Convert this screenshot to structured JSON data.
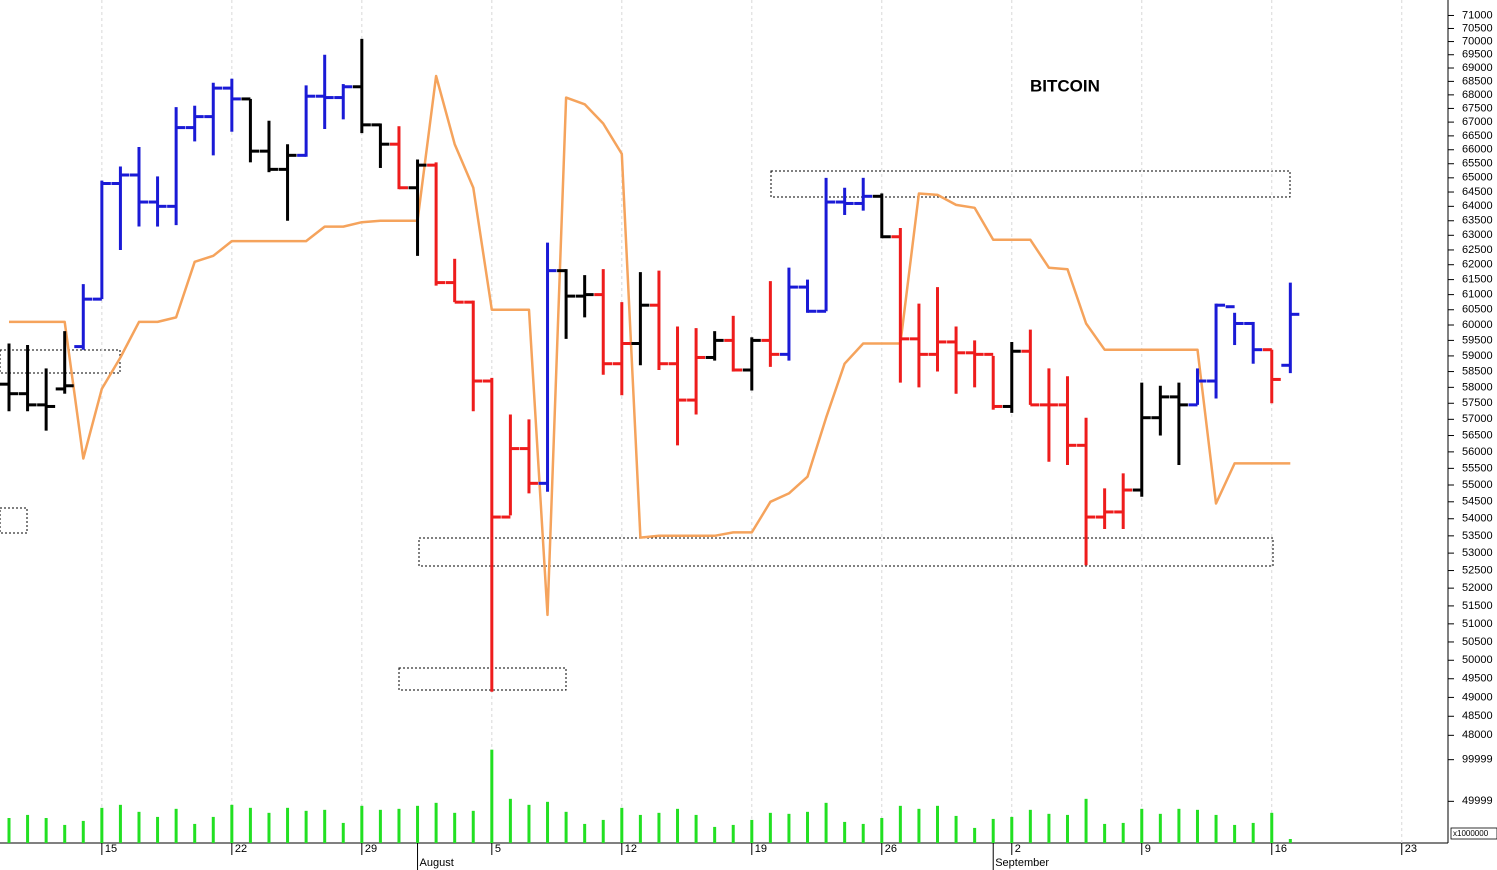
{
  "chart_data": {
    "type": "ohlc",
    "title": "BITCOIN",
    "log": true,
    "x": [
      "07-10",
      "07-11",
      "07-12",
      "07-13",
      "07-14",
      "07-15",
      "07-16",
      "07-17",
      "07-18",
      "07-19",
      "07-20",
      "07-21",
      "07-22",
      "07-23",
      "07-24",
      "07-25",
      "07-26",
      "07-27",
      "07-28",
      "07-29",
      "07-30",
      "07-31",
      "08-01",
      "08-02",
      "08-03",
      "08-04",
      "08-05",
      "08-06",
      "08-07",
      "08-08",
      "08-09",
      "08-10",
      "08-11",
      "08-12",
      "08-13",
      "08-14",
      "08-15",
      "08-16",
      "08-17",
      "08-18",
      "08-19",
      "08-20",
      "08-21",
      "08-22",
      "08-23",
      "08-24",
      "08-25",
      "08-26",
      "08-27",
      "08-28",
      "08-29",
      "08-30",
      "08-31",
      "09-01",
      "09-02",
      "09-03",
      "09-04",
      "09-05",
      "09-06",
      "09-07",
      "09-08",
      "09-09",
      "09-10",
      "09-11",
      "09-12",
      "09-13",
      "09-14",
      "09-15",
      "09-16",
      "09-17"
    ],
    "open": [
      58100,
      57800,
      57450,
      57950,
      59300,
      60850,
      64800,
      65100,
      64150,
      64000,
      66800,
      67200,
      68250,
      67850,
      65950,
      65300,
      65800,
      67950,
      67900,
      68300,
      66900,
      66200,
      64650,
      65450,
      61400,
      60750,
      58200,
      54050,
      56100,
      55050,
      61800,
      60950,
      61000,
      58750,
      59400,
      60650,
      58750,
      57600,
      58950,
      59500,
      58550,
      59500,
      59050,
      61250,
      60450,
      64150,
      64100,
      64350,
      62950,
      59550,
      59050,
      59450,
      59100,
      59050,
      57400,
      59150,
      57450,
      57450,
      56200,
      54050,
      54200,
      54850,
      57050,
      57700,
      57450,
      58200,
      60600,
      60050,
      59200,
      58700
    ],
    "high": [
      59400,
      59350,
      58600,
      59800,
      61350,
      64900,
      65400,
      66100,
      65050,
      67550,
      67600,
      68450,
      68600,
      67850,
      67050,
      66200,
      68350,
      69500,
      68400,
      70100,
      66950,
      66850,
      65650,
      65550,
      62200,
      60800,
      58300,
      57150,
      57000,
      62750,
      61850,
      61650,
      61850,
      60750,
      61750,
      61800,
      59950,
      59900,
      59800,
      60300,
      59600,
      61450,
      61900,
      61500,
      65000,
      64650,
      65000,
      64450,
      63250,
      60700,
      61250,
      59950,
      59500,
      59000,
      59450,
      59850,
      58600,
      58350,
      57050,
      54900,
      55350,
      58150,
      58050,
      58150,
      58600,
      60700,
      60400,
      60100,
      59200,
      61400
    ],
    "low": [
      57250,
      57250,
      56650,
      57800,
      59200,
      60850,
      62500,
      63300,
      63300,
      63350,
      66300,
      65800,
      66650,
      65550,
      65200,
      63500,
      65750,
      66750,
      67100,
      66600,
      65350,
      64600,
      62300,
      61300,
      60750,
      57250,
      49150,
      54100,
      54750,
      54800,
      59550,
      60250,
      58400,
      57750,
      58700,
      58550,
      56200,
      57150,
      58850,
      58500,
      57900,
      58650,
      58850,
      60400,
      60450,
      63700,
      63850,
      62900,
      58150,
      58000,
      58500,
      57800,
      58000,
      57300,
      57200,
      57450,
      55700,
      55600,
      52650,
      53700,
      53700,
      54650,
      56500,
      55600,
      57450,
      57650,
      59350,
      58750,
      57500,
      58450
    ],
    "close": [
      57800,
      57450,
      57400,
      58050,
      60850,
      64800,
      65100,
      64150,
      64000,
      66800,
      67200,
      68250,
      67850,
      65950,
      65300,
      65800,
      67950,
      67900,
      68300,
      66900,
      66200,
      64650,
      65450,
      61400,
      60750,
      58200,
      54050,
      56100,
      55050,
      61800,
      60950,
      61000,
      58750,
      59400,
      60650,
      58750,
      57600,
      58950,
      59500,
      58550,
      59500,
      59050,
      61250,
      60450,
      64150,
      64100,
      64350,
      62950,
      59550,
      59050,
      59450,
      59100,
      59050,
      57400,
      59150,
      57450,
      57450,
      56200,
      54050,
      54200,
      54850,
      57050,
      57700,
      57450,
      58200,
      60650,
      60050,
      59200,
      58250,
      60350
    ],
    "colors": [
      "#000000",
      "#000000",
      "#000000",
      "#000000",
      "#1a1ad6",
      "#1a1ad6",
      "#1a1ad6",
      "#1a1ad6",
      "#1a1ad6",
      "#1a1ad6",
      "#1a1ad6",
      "#1a1ad6",
      "#1a1ad6",
      "#000000",
      "#000000",
      "#000000",
      "#1a1ad6",
      "#1a1ad6",
      "#1a1ad6",
      "#000000",
      "#000000",
      "#ee1c1c",
      "#000000",
      "#ee1c1c",
      "#ee1c1c",
      "#ee1c1c",
      "#ee1c1c",
      "#ee1c1c",
      "#ee1c1c",
      "#1a1ad6",
      "#000000",
      "#000000",
      "#ee1c1c",
      "#ee1c1c",
      "#000000",
      "#ee1c1c",
      "#ee1c1c",
      "#ee1c1c",
      "#000000",
      "#ee1c1c",
      "#000000",
      "#ee1c1c",
      "#1a1ad6",
      "#1a1ad6",
      "#1a1ad6",
      "#1a1ad6",
      "#1a1ad6",
      "#000000",
      "#ee1c1c",
      "#ee1c1c",
      "#ee1c1c",
      "#ee1c1c",
      "#ee1c1c",
      "#ee1c1c",
      "#000000",
      "#ee1c1c",
      "#ee1c1c",
      "#ee1c1c",
      "#ee1c1c",
      "#ee1c1c",
      "#ee1c1c",
      "#000000",
      "#000000",
      "#000000",
      "#1a1ad6",
      "#1a1ad6",
      "#1a1ad6",
      "#1a1ad6",
      "#ee1c1c",
      "#1a1ad6"
    ],
    "overlay": {
      "color": "#f5a35c",
      "values": [
        60100,
        60100,
        60100,
        60100,
        55800,
        57950,
        58950,
        60100,
        60100,
        60250,
        62100,
        62300,
        62800,
        62800,
        62800,
        62800,
        62800,
        63300,
        63300,
        63450,
        63500,
        63500,
        63500,
        68700,
        66200,
        64650,
        60500,
        60500,
        60500,
        51250,
        67900,
        67650,
        66950,
        65850,
        53450,
        53500,
        53500,
        53500,
        53500,
        53600,
        53600,
        54500,
        54750,
        55250,
        57050,
        58750,
        59400,
        59400,
        59400,
        64450,
        64400,
        64050,
        63950,
        62850,
        62850,
        62850,
        61900,
        61850,
        60050,
        59200,
        59200,
        59200,
        59200,
        59200,
        59200,
        54450,
        55650,
        55650,
        55650,
        55650
      ]
    },
    "ylim": [
      47800,
      71600
    ],
    "yticks": [
      48000,
      48500,
      49000,
      49500,
      50000,
      50500,
      51000,
      51500,
      52000,
      52500,
      53000,
      53500,
      54000,
      54500,
      55000,
      55500,
      56000,
      56500,
      57000,
      57500,
      58000,
      58500,
      59000,
      59500,
      60000,
      60500,
      61000,
      61500,
      62000,
      62500,
      63000,
      63500,
      64000,
      64500,
      65000,
      65500,
      66000,
      66500,
      67000,
      67500,
      68000,
      68500,
      69000,
      69500,
      70000,
      70500,
      71000
    ],
    "xticks": [
      {
        "value": "07-15",
        "label": "15"
      },
      {
        "value": "07-22",
        "label": "22"
      },
      {
        "value": "07-29",
        "label": "29"
      },
      {
        "value": "08-01",
        "label": "August"
      },
      {
        "value": "08-05",
        "label": "5"
      },
      {
        "value": "08-12",
        "label": "12"
      },
      {
        "value": "08-19",
        "label": "19"
      },
      {
        "value": "08-26",
        "label": "26"
      },
      {
        "value": "09-01",
        "label": "September"
      },
      {
        "value": "09-02",
        "label": "2"
      },
      {
        "value": "09-09",
        "label": "9"
      },
      {
        "value": "09-16",
        "label": "16"
      },
      {
        "value": "09-23",
        "label": "23"
      }
    ],
    "grid": true,
    "volume": {
      "color": "#22e022",
      "unit": "x1000000",
      "ylim": [
        0,
        120000
      ],
      "yticks": [
        49999,
        99999
      ],
      "values": [
        30000,
        33700,
        30000,
        21700,
        26500,
        42200,
        45800,
        37400,
        31300,
        41000,
        22900,
        31300,
        45800,
        42200,
        36200,
        42200,
        38600,
        39800,
        24100,
        44600,
        39800,
        41000,
        44600,
        48200,
        36200,
        38600,
        112000,
        53000,
        45800,
        49400,
        37400,
        22900,
        27700,
        42200,
        33700,
        36200,
        41000,
        33700,
        19300,
        21700,
        27700,
        36200,
        35000,
        37400,
        48200,
        25300,
        22900,
        30000,
        44600,
        41000,
        44600,
        32500,
        18100,
        28900,
        31300,
        39800,
        35000,
        33700,
        53000,
        22900,
        24100,
        41000,
        35000,
        41000,
        39800,
        33700,
        21700,
        24100,
        36200,
        4800
      ]
    }
  }
}
